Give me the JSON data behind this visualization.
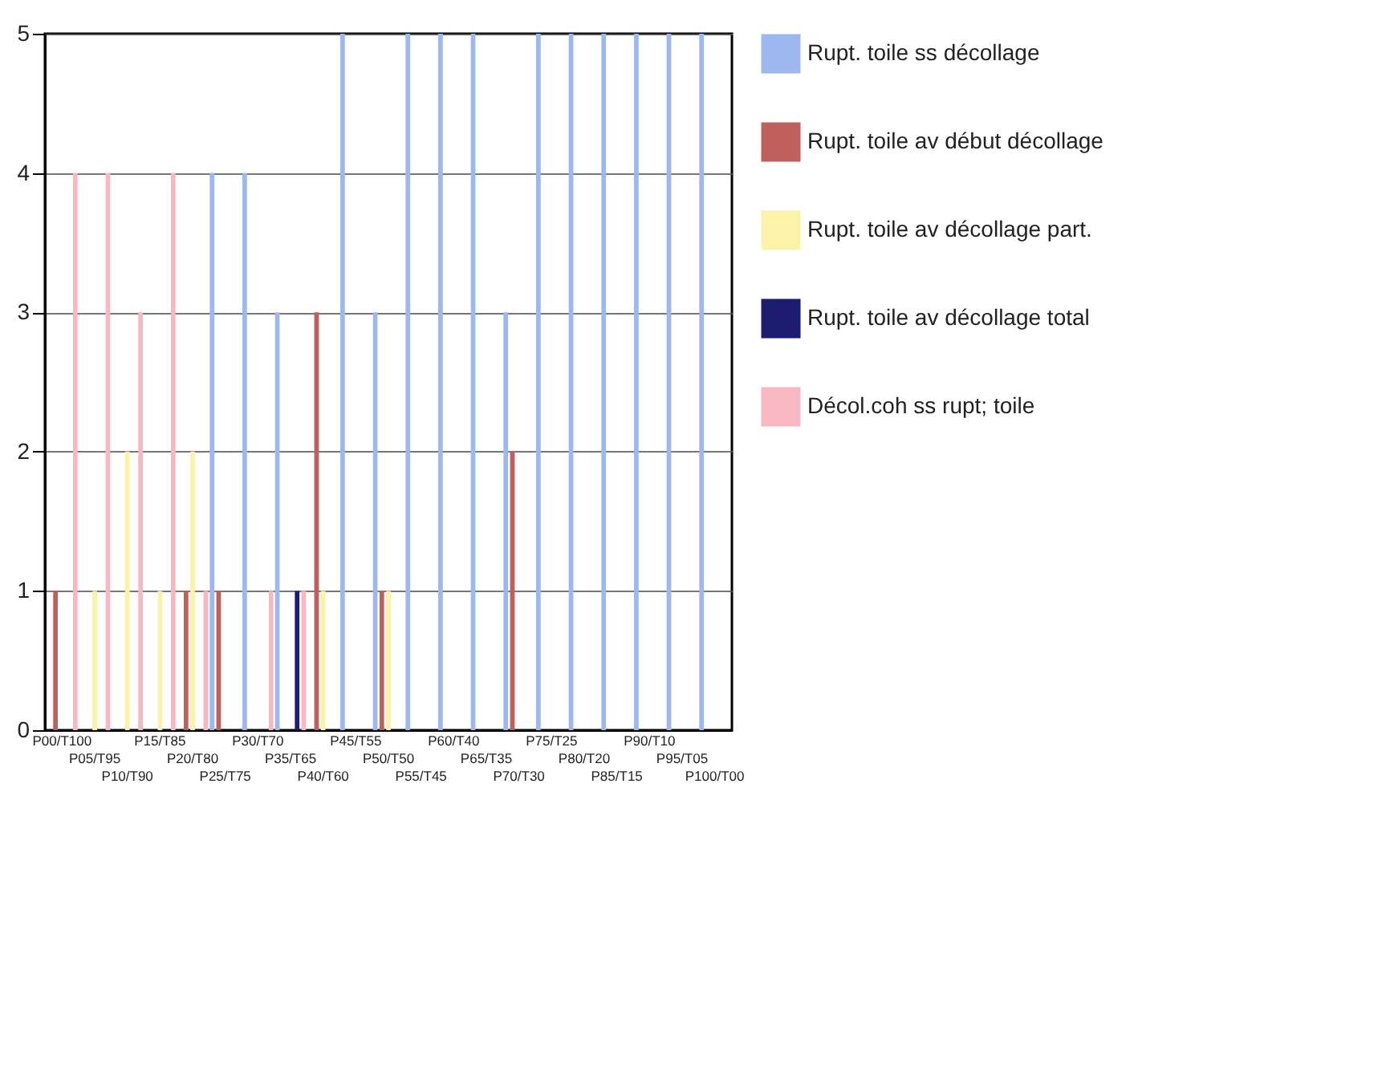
{
  "chart_data": {
    "type": "bar",
    "categories": [
      "P00/T100",
      "P05/T95",
      "P10/T90",
      "P15/T85",
      "P20/T80",
      "P25/T75",
      "P30/T70",
      "P35/T65",
      "P40/T60",
      "P45/T55",
      "P50/T50",
      "P55/T45",
      "P60/T40",
      "P65/T35",
      "P70/T30",
      "P75/T25",
      "P80/T20",
      "P85/T15",
      "P90/T10",
      "P95/T05",
      "P100/T00"
    ],
    "series": [
      {
        "name": "Rupt. toile ss décollage",
        "color": "#9db8f0",
        "values": [
          0,
          0,
          0,
          0,
          0,
          4,
          4,
          3,
          0,
          5,
          3,
          5,
          5,
          5,
          3,
          5,
          5,
          5,
          5,
          5,
          5
        ]
      },
      {
        "name": "Rupt. toile av début décollage",
        "color": "#c0605c",
        "values": [
          1,
          0,
          0,
          0,
          1,
          1,
          0,
          0,
          3,
          0,
          1,
          0,
          0,
          0,
          2,
          0,
          0,
          0,
          0,
          0,
          0
        ]
      },
      {
        "name": "Rupt. toile av décollage part.",
        "color": "#fcf2a8",
        "values": [
          0,
          1,
          2,
          1,
          2,
          0,
          0,
          0,
          1,
          0,
          1,
          0,
          0,
          0,
          0,
          0,
          0,
          0,
          0,
          0,
          0
        ]
      },
      {
        "name": "Rupt. toile av décollage total",
        "color": "#1c1c72",
        "values": [
          0,
          0,
          0,
          0,
          0,
          0,
          0,
          1,
          0,
          0,
          0,
          0,
          0,
          0,
          0,
          0,
          0,
          0,
          0,
          0,
          0
        ]
      },
      {
        "name": "Décol.coh ss rupt; toile",
        "color": "#f8b8c2",
        "values": [
          4,
          4,
          3,
          4,
          1,
          0,
          1,
          1,
          0,
          0,
          0,
          0,
          0,
          0,
          0,
          0,
          0,
          0,
          0,
          0,
          0
        ]
      }
    ],
    "ylim": [
      0,
      5
    ],
    "yticks": [
      0,
      1,
      2,
      3,
      4,
      5
    ],
    "grid": "y",
    "legend": "right"
  }
}
